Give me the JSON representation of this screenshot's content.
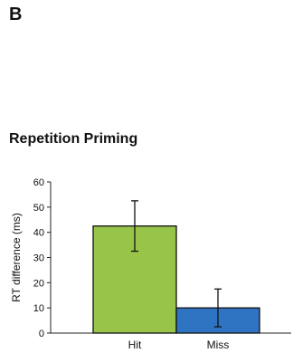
{
  "panel_label": "B",
  "chart_data": {
    "type": "bar",
    "title": "Repetition Priming",
    "xlabel": "",
    "ylabel": "RT difference (ms)",
    "categories": [
      "Hit",
      "Miss"
    ],
    "values": [
      42.5,
      10
    ],
    "error": [
      [
        32.5,
        52.5
      ],
      [
        2.5,
        17.5
      ]
    ],
    "ylim": [
      0,
      60
    ],
    "yticks": [
      0,
      10,
      20,
      30,
      40,
      50,
      60
    ],
    "grid": false,
    "colors": [
      "#98c549",
      "#2f74c2"
    ]
  }
}
